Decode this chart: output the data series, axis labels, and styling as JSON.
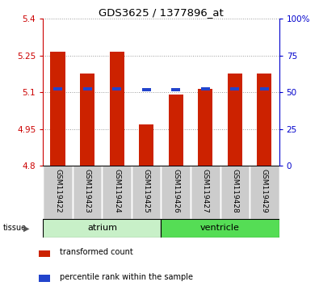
{
  "title": "GDS3625 / 1377896_at",
  "samples": [
    "GSM119422",
    "GSM119423",
    "GSM119424",
    "GSM119425",
    "GSM119426",
    "GSM119427",
    "GSM119428",
    "GSM119429"
  ],
  "red_values": [
    5.265,
    5.175,
    5.265,
    4.97,
    5.09,
    5.115,
    5.175,
    5.175
  ],
  "blue_values": [
    5.115,
    5.115,
    5.115,
    5.11,
    5.11,
    5.115,
    5.115,
    5.115
  ],
  "ylim_left": [
    4.8,
    5.4
  ],
  "ylim_right": [
    0,
    100
  ],
  "yticks_left": [
    4.8,
    4.95,
    5.1,
    5.25,
    5.4
  ],
  "yticks_right": [
    0,
    25,
    50,
    75,
    100
  ],
  "ytick_labels_left": [
    "4.8",
    "4.95",
    "5.1",
    "5.25",
    "5.4"
  ],
  "ytick_labels_right": [
    "0",
    "25",
    "50",
    "75",
    "100%"
  ],
  "groups": [
    {
      "label": "atrium",
      "indices": [
        0,
        1,
        2,
        3
      ],
      "color": "#c8f0c8"
    },
    {
      "label": "ventricle",
      "indices": [
        4,
        5,
        6,
        7
      ],
      "color": "#55dd55"
    }
  ],
  "bar_width": 0.5,
  "bar_color": "#cc2200",
  "blue_color": "#2244cc",
  "grid_color": "#999999",
  "bg_color": "#ffffff",
  "left_tick_color": "#cc0000",
  "right_tick_color": "#0000cc",
  "tissue_label": "tissue",
  "legend_red": "transformed count",
  "legend_blue": "percentile rank within the sample"
}
